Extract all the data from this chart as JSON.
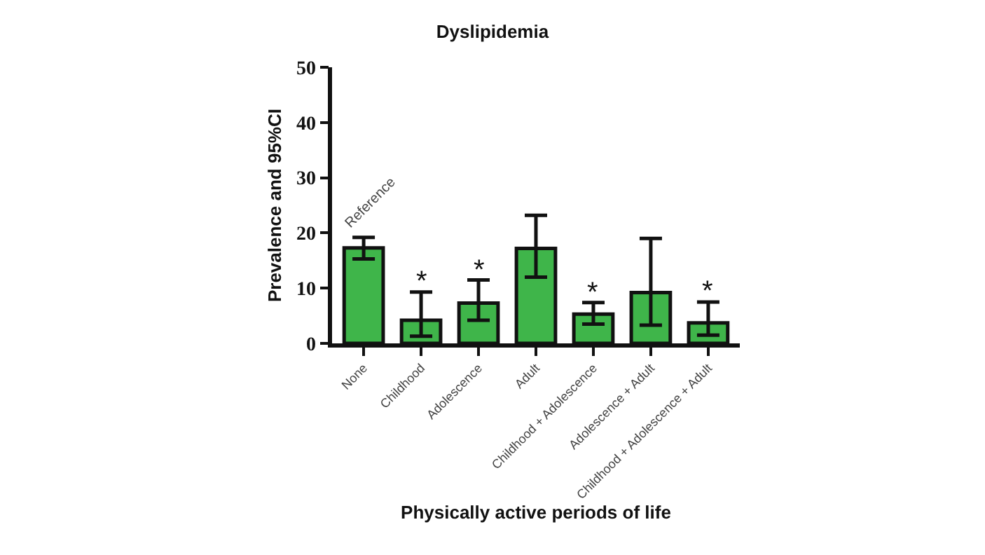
{
  "chart_data": {
    "type": "bar",
    "title": "Dyslipidemia",
    "xlabel": "Physically active periods of life",
    "ylabel": "Prevalence and 95%CI",
    "categories": [
      "None",
      "Childhood",
      "Adolescence",
      "Adult",
      "Childhood + Adolescence",
      "Adolescence + Adult",
      "Childhood + Adolescence + Adult"
    ],
    "values": [
      17.3,
      4.2,
      7.3,
      17.2,
      5.3,
      9.2,
      3.7
    ],
    "errors": [
      [
        15.3,
        19.2
      ],
      [
        1.3,
        9.3
      ],
      [
        4.2,
        11.5
      ],
      [
        12,
        23.2
      ],
      [
        3.5,
        7.4
      ],
      [
        3.3,
        19
      ],
      [
        1.5,
        7.5
      ]
    ],
    "color": "#3fb54a",
    "ylim": [
      0,
      50
    ],
    "yticks": [
      0,
      10,
      20,
      30,
      40,
      50
    ],
    "grid": false,
    "annotations": [
      {
        "text": "Reference",
        "x": "None",
        "y": 19.2
      },
      {
        "text": "*",
        "x": "Childhood",
        "y": 9.3
      },
      {
        "text": "*",
        "x": "Adolescence",
        "y": 11.5
      },
      {
        "text": "*",
        "x": "Childhood + Adolescence",
        "y": 7.4
      },
      {
        "text": "*",
        "x": "Childhood + Adolescence + Adult",
        "y": 7.5
      }
    ]
  }
}
